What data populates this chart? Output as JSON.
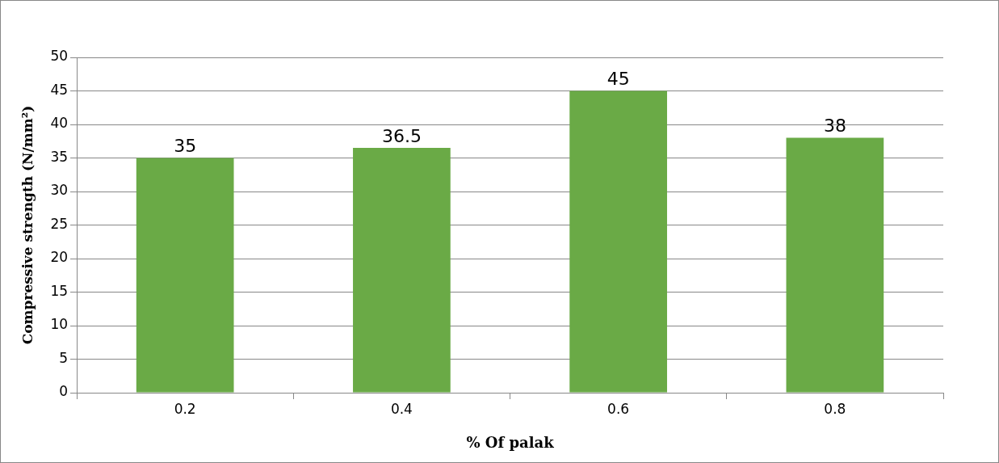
{
  "chart_data": {
    "type": "bar",
    "xlabel": "% Of palak",
    "ylabel": "Compressive strength (N/mm²)",
    "categories": [
      "0.2",
      "0.4",
      "0.6",
      "0.8"
    ],
    "values": [
      35,
      36.5,
      45,
      38
    ],
    "color": "#6aaa46",
    "ylim": [
      0,
      50
    ],
    "yticks": [
      0,
      5,
      10,
      15,
      20,
      25,
      30,
      35,
      40,
      45,
      50
    ],
    "grid": "y",
    "data_labels": true
  }
}
